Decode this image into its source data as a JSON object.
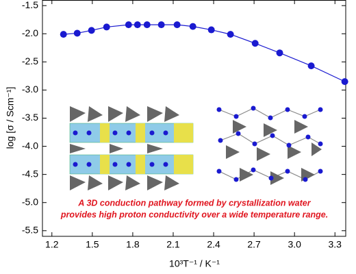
{
  "chart_data": {
    "type": "line-scatter",
    "xlabel": "10³T⁻¹ / K⁻¹",
    "ylabel": "log [σ / Scm⁻¹]",
    "annotation": [
      "A 3D conduction pathway formed by crystallization water",
      "provides high proton conductivity over a wide temperature range."
    ],
    "x": [
      1.286,
      1.388,
      1.494,
      1.606,
      1.769,
      1.835,
      1.906,
      2.012,
      2.129,
      2.246,
      2.383,
      2.525,
      2.708,
      2.89,
      3.124,
      3.373
    ],
    "values": [
      -2.01,
      -1.99,
      -1.94,
      -1.88,
      -1.84,
      -1.84,
      -1.84,
      -1.84,
      -1.84,
      -1.87,
      -1.93,
      -2.01,
      -2.17,
      -2.34,
      -2.57,
      -2.85
    ],
    "color": "#1a1ad0",
    "xlim": [
      1.13,
      3.38
    ],
    "ylim": [
      -5.6,
      -1.4
    ],
    "xticks": [
      1.2,
      1.5,
      1.8,
      2.1,
      2.4,
      2.7,
      {
        "value": 3.0,
        "label": "3.0"
      },
      3.3
    ],
    "yticks": [
      -1.5,
      {
        "value": -2.0,
        "label": "-2.0"
      },
      -2.5,
      {
        "value": -3.0,
        "label": "-3.0"
      },
      -3.5,
      {
        "value": -4.0,
        "label": "-4.0"
      },
      -4.5,
      {
        "value": -5.0,
        "label": "-5.0"
      },
      -5.5
    ]
  }
}
